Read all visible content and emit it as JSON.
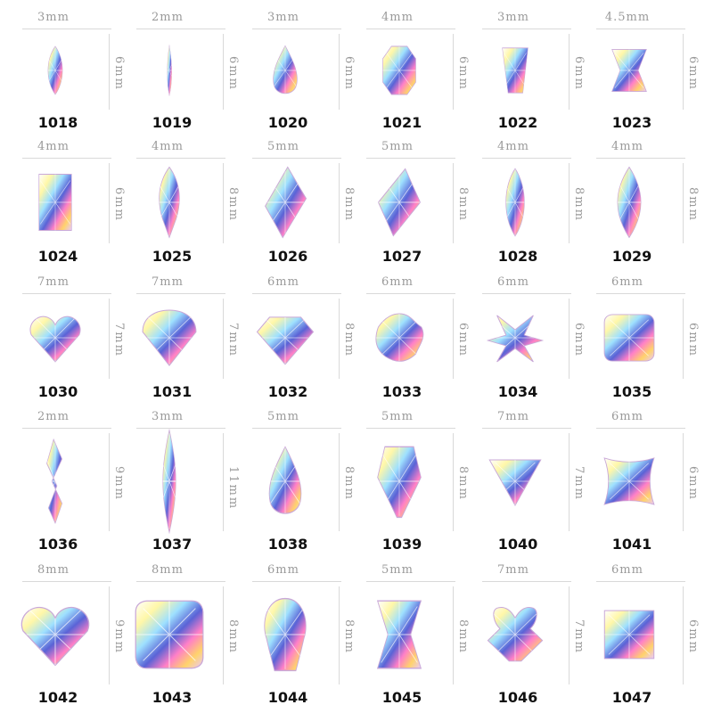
{
  "image": {
    "description_colors": {
      "background": "#ffffff",
      "label_gray": "#9a9a9a",
      "code_black": "#111111"
    },
    "items": [
      {
        "code": "1018",
        "width": "3mm",
        "height": "6mm",
        "shape": "marquise"
      },
      {
        "code": "1019",
        "width": "2mm",
        "height": "6mm",
        "shape": "narrow-drop"
      },
      {
        "code": "1020",
        "width": "3mm",
        "height": "6mm",
        "shape": "teardrop"
      },
      {
        "code": "1021",
        "width": "4mm",
        "height": "6mm",
        "shape": "octagon"
      },
      {
        "code": "1022",
        "width": "3mm",
        "height": "6mm",
        "shape": "trapezoid"
      },
      {
        "code": "1023",
        "width": "4.5mm",
        "height": "6mm",
        "shape": "hourglass"
      },
      {
        "code": "1024",
        "width": "4mm",
        "height": "6mm",
        "shape": "rectangle"
      },
      {
        "code": "1025",
        "width": "4mm",
        "height": "8mm",
        "shape": "drop"
      },
      {
        "code": "1026",
        "width": "5mm",
        "height": "8mm",
        "shape": "kite"
      },
      {
        "code": "1027",
        "width": "5mm",
        "height": "8mm",
        "shape": "rhombus"
      },
      {
        "code": "1028",
        "width": "4mm",
        "height": "8mm",
        "shape": "marquise"
      },
      {
        "code": "1029",
        "width": "4mm",
        "height": "8mm",
        "shape": "navette"
      },
      {
        "code": "1030",
        "width": "7mm",
        "height": "7mm",
        "shape": "heart"
      },
      {
        "code": "1031",
        "width": "7mm",
        "height": "7mm",
        "shape": "triangle-drop"
      },
      {
        "code": "1032",
        "width": "6mm",
        "height": "8mm",
        "shape": "diamond"
      },
      {
        "code": "1033",
        "width": "6mm",
        "height": "6mm",
        "shape": "flower"
      },
      {
        "code": "1034",
        "width": "6mm",
        "height": "6mm",
        "shape": "butterfly"
      },
      {
        "code": "1035",
        "width": "6mm",
        "height": "6mm",
        "shape": "cushion"
      },
      {
        "code": "1036",
        "width": "2mm",
        "height": "9mm",
        "shape": "wave"
      },
      {
        "code": "1037",
        "width": "3mm",
        "height": "11mm",
        "shape": "long-marquise"
      },
      {
        "code": "1038",
        "width": "5mm",
        "height": "8mm",
        "shape": "teardrop"
      },
      {
        "code": "1039",
        "width": "5mm",
        "height": "8mm",
        "shape": "shield"
      },
      {
        "code": "1040",
        "width": "7mm",
        "height": "7mm",
        "shape": "triangle"
      },
      {
        "code": "1041",
        "width": "6mm",
        "height": "6mm",
        "shape": "concave-square"
      },
      {
        "code": "1042",
        "width": "8mm",
        "height": "9mm",
        "shape": "heart"
      },
      {
        "code": "1043",
        "width": "8mm",
        "height": "8mm",
        "shape": "cushion"
      },
      {
        "code": "1044",
        "width": "6mm",
        "height": "8mm",
        "shape": "skull"
      },
      {
        "code": "1045",
        "width": "5mm",
        "height": "8mm",
        "shape": "hourglass"
      },
      {
        "code": "1046",
        "width": "7mm",
        "height": "7mm",
        "shape": "bear"
      },
      {
        "code": "1047",
        "width": "6mm",
        "height": "6mm",
        "shape": "square"
      }
    ]
  }
}
